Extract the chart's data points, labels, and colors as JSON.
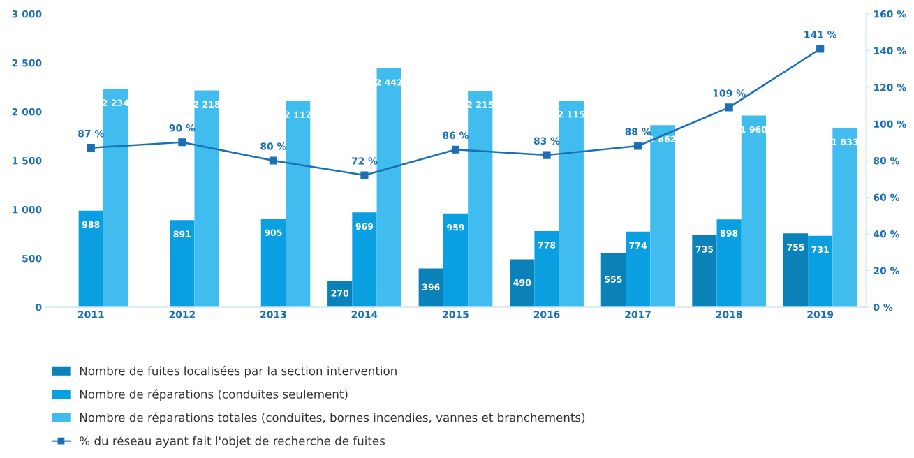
{
  "chart_data": {
    "type": "bar",
    "categories": [
      "2011",
      "2012",
      "2013",
      "2014",
      "2015",
      "2016",
      "2017",
      "2018",
      "2019"
    ],
    "series": [
      {
        "name": "Nombre de fuites localisées par la section intervention",
        "color": "#0a82b9",
        "values": [
          null,
          null,
          null,
          270,
          396,
          490,
          555,
          735,
          755
        ],
        "value_labels": [
          null,
          null,
          null,
          "270",
          "396",
          "490",
          "555",
          "735",
          "755"
        ]
      },
      {
        "name": "Nombre de réparations (conduites seulement)",
        "color": "#0a9fe0",
        "values": [
          988,
          891,
          905,
          969,
          959,
          778,
          774,
          898,
          731
        ],
        "value_labels": [
          "988",
          "891",
          "905",
          "969",
          "959",
          "778",
          "774",
          "898",
          "731"
        ]
      },
      {
        "name": "Nombre de réparations totales (conduites, bornes incendies, vannes et branchements)",
        "color": "#40bdee",
        "values": [
          2234,
          2218,
          2112,
          2442,
          2215,
          2115,
          1862,
          1960,
          1833
        ],
        "value_labels": [
          "2 234",
          "2 218",
          "2 112",
          "2 442",
          "2 215",
          "2 115",
          "1 862",
          "1 960",
          "1 833"
        ]
      },
      {
        "name": "% du réseau ayant fait l'objet de recherche de fuites",
        "type": "line",
        "axis": "y2",
        "color": "#1a6fb5",
        "marker": "square",
        "values": [
          87,
          90,
          80,
          72,
          86,
          83,
          88,
          109,
          141
        ],
        "value_labels": [
          "87 %",
          "90 %",
          "80 %",
          "72 %",
          "86 %",
          "83 %",
          "88 %",
          "109 %",
          "141 %"
        ]
      }
    ],
    "ylim": [
      0,
      3000
    ],
    "yticks": [
      {
        "value": 0,
        "label": "0"
      },
      {
        "value": 500,
        "label": "500"
      },
      {
        "value": 1000,
        "label": "1 000"
      },
      {
        "value": 1500,
        "label": "1 500"
      },
      {
        "value": 2000,
        "label": "2 000"
      },
      {
        "value": 2500,
        "label": "2 500"
      },
      {
        "value": 3000,
        "label": "3 000"
      }
    ],
    "y2lim": [
      0,
      160
    ],
    "y2ticks": [
      {
        "value": 0,
        "label": "0 %"
      },
      {
        "value": 20,
        "label": "20 %"
      },
      {
        "value": 40,
        "label": "40 %"
      },
      {
        "value": 60,
        "label": "60 %"
      },
      {
        "value": 80,
        "label": "80 %"
      },
      {
        "value": 100,
        "label": "100 %"
      },
      {
        "value": 120,
        "label": "120 %"
      },
      {
        "value": 140,
        "label": "140 %"
      },
      {
        "value": 160,
        "label": "160 %"
      }
    ],
    "grid": false,
    "legend": "bottom"
  }
}
